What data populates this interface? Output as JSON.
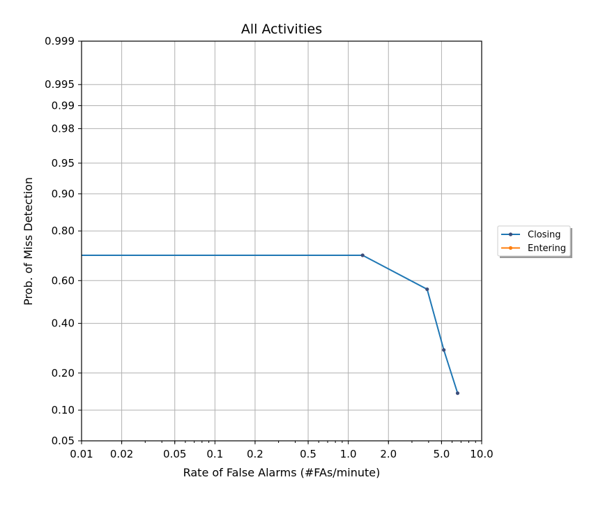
{
  "chart_data": {
    "type": "line",
    "title": "All Activities",
    "xlabel": "Rate of False Alarms (#FAs/minute)",
    "ylabel": "Prob. of Miss Detection",
    "x_scale": "log",
    "y_scale": "normal-deviate (probit)",
    "xlim": [
      0.01,
      10.0
    ],
    "ylim": [
      0.05,
      0.999
    ],
    "x_ticks": [
      {
        "value": 0.01,
        "label": "0.01"
      },
      {
        "value": 0.02,
        "label": "0.02"
      },
      {
        "value": 0.05,
        "label": "0.05"
      },
      {
        "value": 0.1,
        "label": "0.1"
      },
      {
        "value": 0.2,
        "label": "0.2"
      },
      {
        "value": 0.5,
        "label": "0.5"
      },
      {
        "value": 1.0,
        "label": "1.0"
      },
      {
        "value": 2.0,
        "label": "2.0"
      },
      {
        "value": 5.0,
        "label": "5.0"
      },
      {
        "value": 10.0,
        "label": "10.0"
      }
    ],
    "y_ticks": [
      {
        "value": 0.05,
        "label": "0.05"
      },
      {
        "value": 0.1,
        "label": "0.10"
      },
      {
        "value": 0.2,
        "label": "0.20"
      },
      {
        "value": 0.4,
        "label": "0.40"
      },
      {
        "value": 0.6,
        "label": "0.60"
      },
      {
        "value": 0.8,
        "label": "0.80"
      },
      {
        "value": 0.9,
        "label": "0.90"
      },
      {
        "value": 0.95,
        "label": "0.95"
      },
      {
        "value": 0.98,
        "label": "0.98"
      },
      {
        "value": 0.99,
        "label": "0.99"
      },
      {
        "value": 0.995,
        "label": "0.995"
      },
      {
        "value": 0.999,
        "label": "0.999"
      }
    ],
    "grid": true,
    "legend_position": "outside right",
    "series": [
      {
        "name": "Closing",
        "color": "#1f77b4",
        "marker_color": "#3b4d7a",
        "points": [
          {
            "x": 0.01,
            "y": 0.71,
            "marker": false
          },
          {
            "x": 1.28,
            "y": 0.71,
            "marker": true
          },
          {
            "x": 3.9,
            "y": 0.56,
            "marker": true
          },
          {
            "x": 5.2,
            "y": 0.285,
            "marker": true
          },
          {
            "x": 6.6,
            "y": 0.14,
            "marker": true
          }
        ]
      },
      {
        "name": "Entering",
        "color": "#ff7f0e",
        "marker_color": "#ff7f0e",
        "points": []
      }
    ]
  }
}
